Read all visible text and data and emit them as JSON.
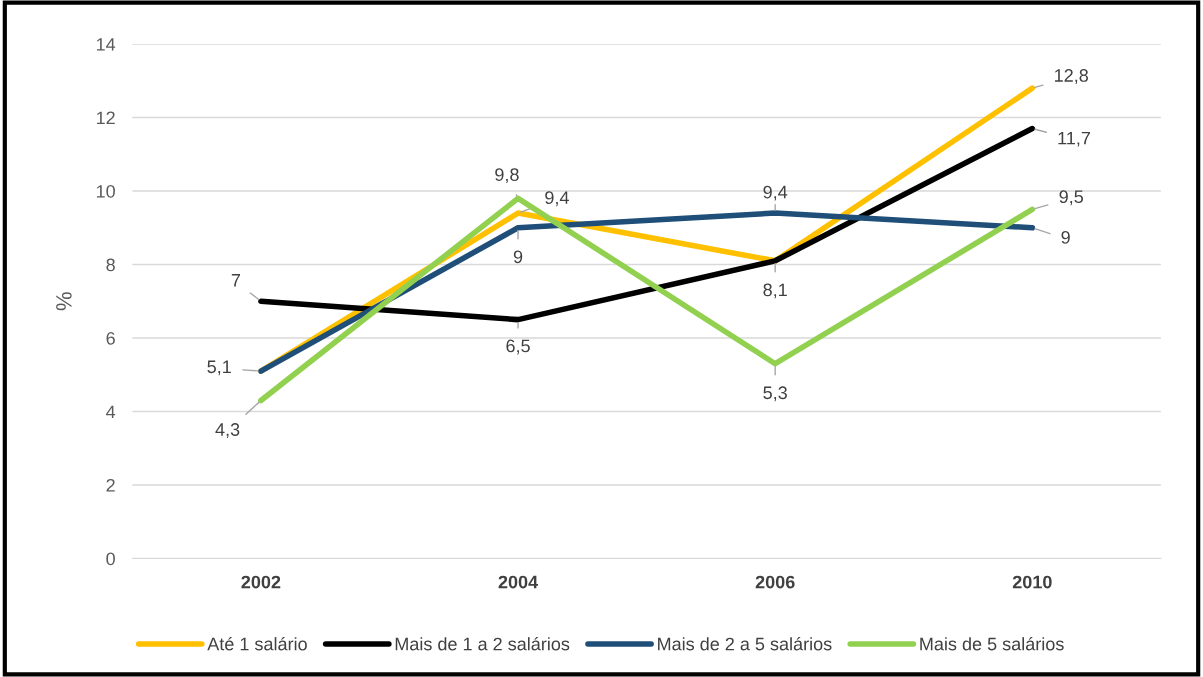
{
  "chart_data": {
    "type": "line",
    "ylabel": "%",
    "categories": [
      "2002",
      "2004",
      "2006",
      "2010"
    ],
    "series": [
      {
        "name": "Até 1 salário",
        "color": "#ffc000",
        "values": [
          5.1,
          9.4,
          8.1,
          12.8
        ],
        "value_labels": [
          null,
          "9,4",
          null,
          "12,8"
        ]
      },
      {
        "name": "Mais de 1 a 2 salários",
        "color": "#000000",
        "values": [
          7,
          6.5,
          8.1,
          11.7
        ],
        "value_labels": [
          "7",
          "6,5",
          "8,1",
          "11,7"
        ]
      },
      {
        "name": "Mais de 2 a 5 salários",
        "color": "#1f4e79",
        "values": [
          5.1,
          9,
          9.4,
          9
        ],
        "value_labels": [
          "5,1",
          "9",
          "9,4",
          "9"
        ]
      },
      {
        "name": "Mais de 5 salários",
        "color": "#92d050",
        "values": [
          4.3,
          9.8,
          5.3,
          9.5
        ],
        "value_labels": [
          "4,3",
          "9,8",
          "5,3",
          "9,5"
        ]
      }
    ],
    "ylim": [
      0,
      14
    ],
    "yticks": [
      0,
      2,
      4,
      6,
      8,
      10,
      12,
      14
    ],
    "grid": "y",
    "legend": "bottom",
    "marker": "none",
    "line_style": "solid"
  }
}
